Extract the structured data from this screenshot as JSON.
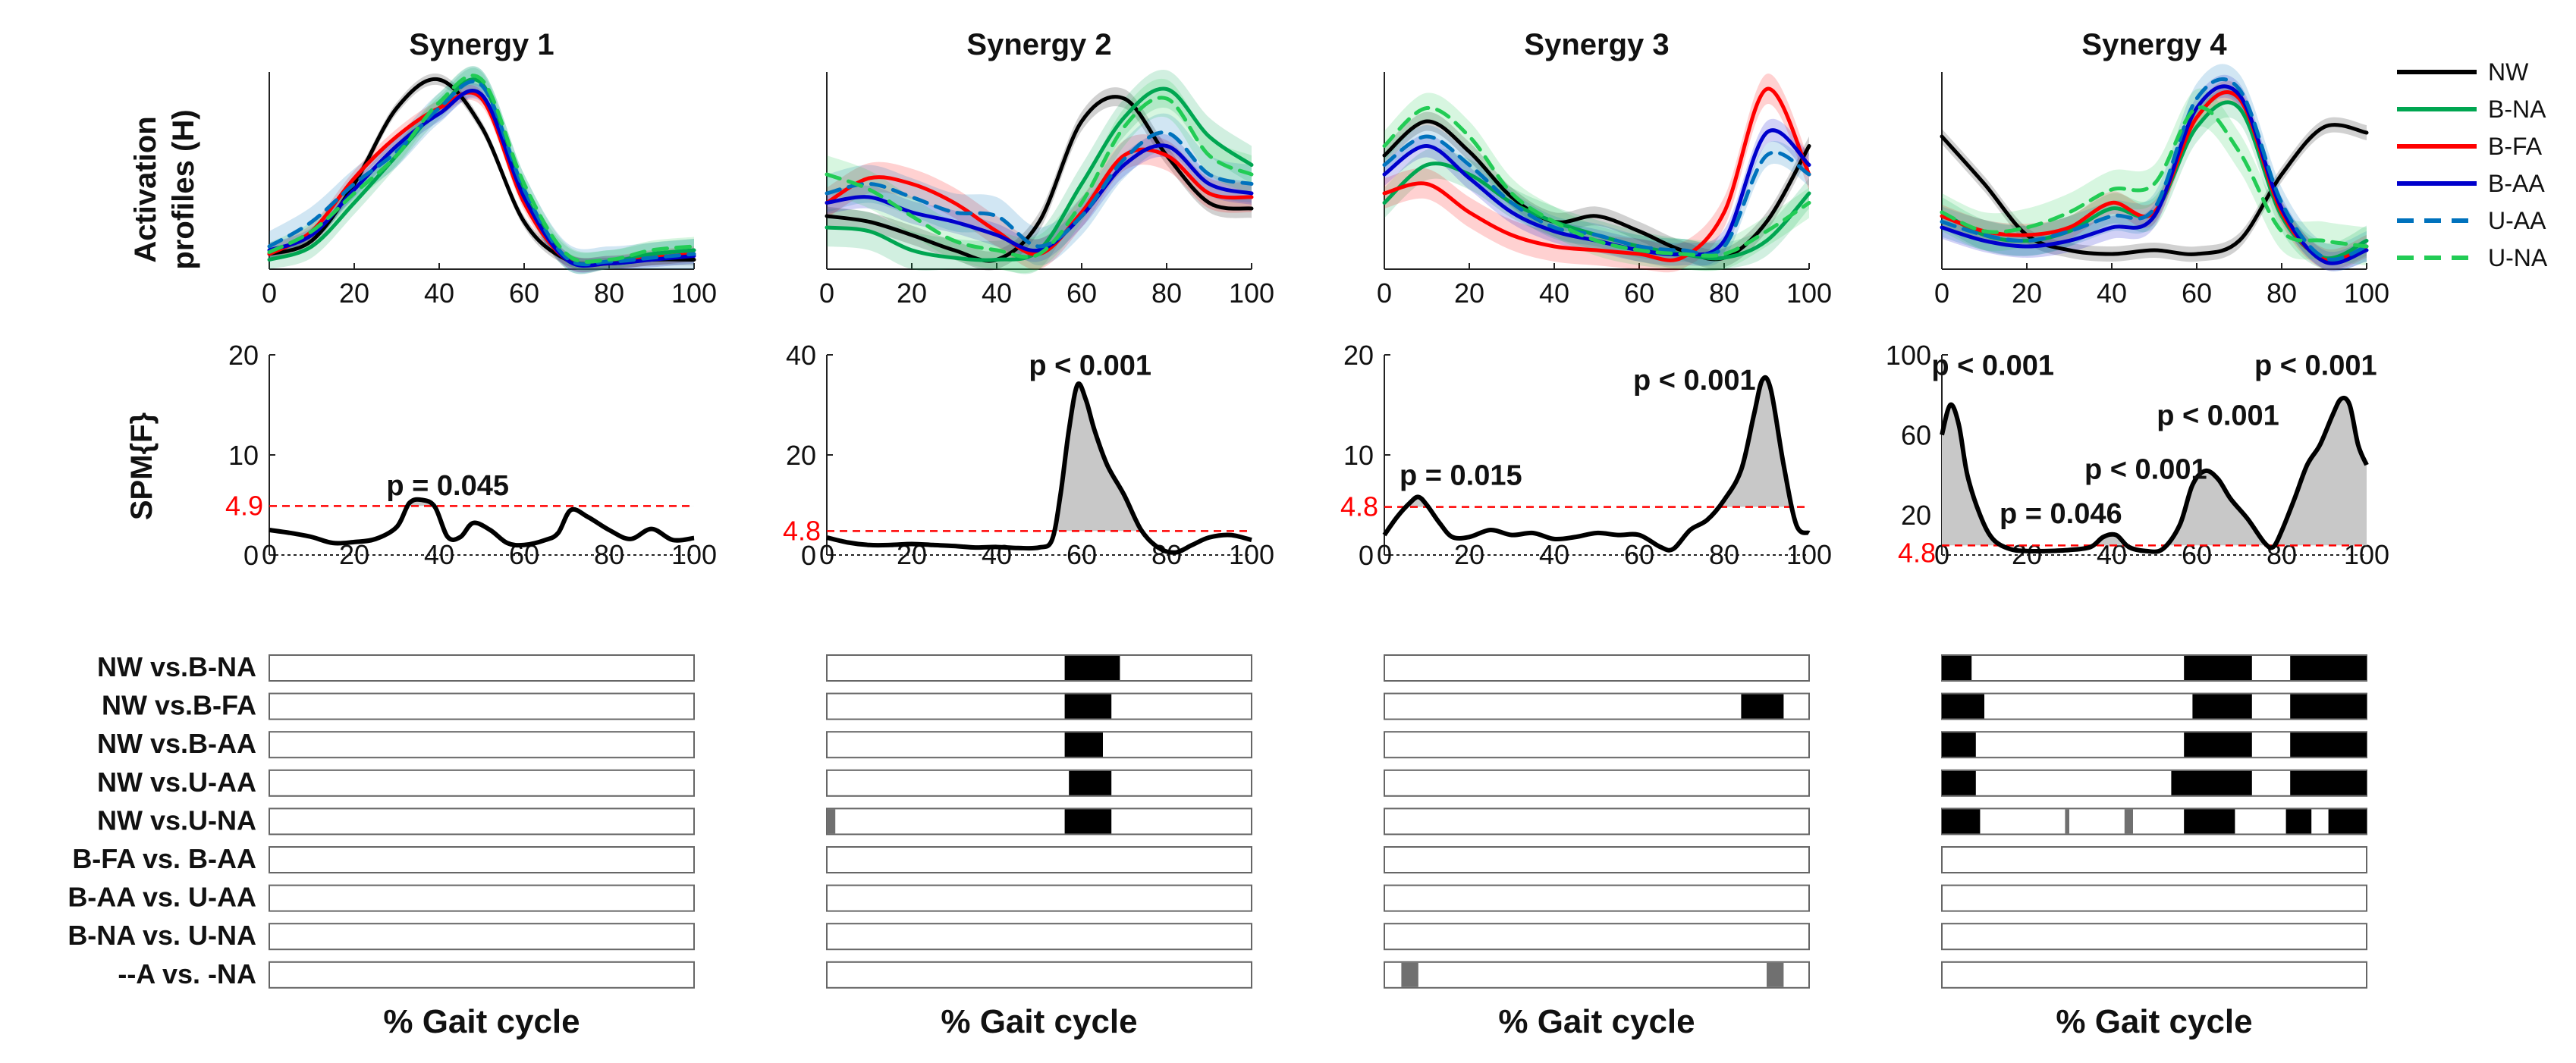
{
  "figure": {
    "x_axis_label": "% Gait cycle"
  },
  "legend": [
    {
      "label": "NW",
      "color": "#000000",
      "dash": false
    },
    {
      "label": "B-NA",
      "color": "#00a651",
      "dash": false
    },
    {
      "label": "B-FA",
      "color": "#ff0000",
      "dash": false
    },
    {
      "label": "B-AA",
      "color": "#0000cc",
      "dash": false
    },
    {
      "label": "U-AA",
      "color": "#0072bd",
      "dash": true
    },
    {
      "label": "U-NA",
      "color": "#22cc55",
      "dash": true
    }
  ],
  "row_labels": {
    "activation": [
      "Activation",
      "profiles (H)"
    ],
    "spm": "SPM{F}"
  },
  "comparisons": [
    "NW vs.B-NA",
    "NW vs.B-FA",
    "NW vs.B-AA",
    "NW vs.U-AA",
    "NW vs.U-NA",
    "B-FA vs. B-AA",
    "B-AA vs. U-AA",
    "B-NA vs. U-NA",
    "--A  vs.  -NA"
  ],
  "chart_data": [
    {
      "type": "line",
      "title": "Synergy 1",
      "xlabel": "% Gait cycle",
      "xlim": [
        0,
        100
      ],
      "xticks": [
        0,
        20,
        40,
        60,
        80,
        100
      ],
      "activation": {
        "x": [
          0,
          10,
          20,
          30,
          40,
          50,
          60,
          70,
          80,
          90,
          100
        ],
        "series": [
          {
            "name": "NW",
            "values": [
              0.08,
              0.15,
              0.45,
              0.85,
              1.0,
              0.75,
              0.25,
              0.05,
              0.03,
              0.05,
              0.05
            ],
            "band": 0.03
          },
          {
            "name": "B-NA",
            "values": [
              0.05,
              0.12,
              0.35,
              0.6,
              0.85,
              0.98,
              0.4,
              0.06,
              0.04,
              0.08,
              0.1
            ],
            "band": 0.06
          },
          {
            "name": "B-FA",
            "values": [
              0.08,
              0.2,
              0.48,
              0.7,
              0.85,
              0.9,
              0.35,
              0.05,
              0.03,
              0.06,
              0.08
            ],
            "band": 0.04
          },
          {
            "name": "B-AA",
            "values": [
              0.1,
              0.18,
              0.42,
              0.65,
              0.82,
              0.92,
              0.38,
              0.05,
              0.03,
              0.05,
              0.07
            ],
            "band": 0.04
          },
          {
            "name": "U-AA",
            "values": [
              0.12,
              0.25,
              0.45,
              0.62,
              0.85,
              0.97,
              0.42,
              0.06,
              0.04,
              0.06,
              0.08
            ],
            "band": 0.08
          },
          {
            "name": "U-NA",
            "values": [
              0.09,
              0.2,
              0.4,
              0.6,
              0.88,
              1.0,
              0.45,
              0.08,
              0.05,
              0.1,
              0.12
            ],
            "band": 0.05
          }
        ]
      },
      "spm": {
        "ylim": [
          0,
          20
        ],
        "yticks": [
          0,
          10,
          20
        ],
        "threshold": 4.9,
        "threshold_label": "4.9",
        "x": [
          0,
          5,
          10,
          15,
          20,
          25,
          30,
          33,
          36,
          39,
          42,
          45,
          48,
          52,
          56,
          60,
          65,
          68,
          71,
          75,
          80,
          85,
          90,
          95,
          100
        ],
        "values": [
          2.5,
          2.2,
          1.8,
          1.2,
          1.3,
          1.6,
          2.8,
          5.2,
          5.5,
          4.8,
          1.8,
          1.8,
          3.2,
          2.5,
          1.2,
          1.0,
          1.5,
          2.2,
          4.5,
          3.8,
          2.5,
          1.6,
          2.6,
          1.5,
          1.7
        ],
        "annotations": [
          {
            "text": "p = 0.045",
            "x": 42,
            "y": 6.0
          }
        ]
      },
      "sig_bars": [
        [],
        [],
        [],
        [],
        [],
        [],
        [],
        [],
        []
      ]
    },
    {
      "type": "line",
      "title": "Synergy 2",
      "xlabel": "% Gait cycle",
      "xlim": [
        0,
        100
      ],
      "xticks": [
        0,
        20,
        40,
        60,
        80,
        100
      ],
      "activation": {
        "x": [
          0,
          10,
          20,
          30,
          40,
          50,
          60,
          70,
          80,
          90,
          100
        ],
        "series": [
          {
            "name": "NW",
            "values": [
              0.28,
              0.25,
              0.18,
              0.1,
              0.05,
              0.25,
              0.78,
              0.9,
              0.6,
              0.35,
              0.32
            ],
            "band": 0.05
          },
          {
            "name": "B-NA",
            "values": [
              0.22,
              0.2,
              0.1,
              0.06,
              0.05,
              0.1,
              0.45,
              0.8,
              0.95,
              0.7,
              0.55
            ],
            "band": 0.1
          },
          {
            "name": "B-FA",
            "values": [
              0.35,
              0.48,
              0.45,
              0.35,
              0.2,
              0.08,
              0.3,
              0.6,
              0.6,
              0.4,
              0.38
            ],
            "band": 0.08
          },
          {
            "name": "B-AA",
            "values": [
              0.35,
              0.38,
              0.3,
              0.25,
              0.18,
              0.1,
              0.28,
              0.55,
              0.65,
              0.45,
              0.4
            ],
            "band": 0.06
          },
          {
            "name": "U-AA",
            "values": [
              0.4,
              0.45,
              0.38,
              0.3,
              0.28,
              0.12,
              0.28,
              0.58,
              0.72,
              0.5,
              0.45
            ],
            "band": 0.1
          },
          {
            "name": "U-NA",
            "values": [
              0.5,
              0.42,
              0.28,
              0.15,
              0.1,
              0.08,
              0.35,
              0.75,
              0.9,
              0.6,
              0.5
            ],
            "band": 0.1
          }
        ]
      },
      "spm": {
        "ylim": [
          0,
          40
        ],
        "yticks": [
          0,
          20,
          40
        ],
        "threshold": 4.8,
        "threshold_label": "4.8",
        "x": [
          0,
          5,
          10,
          15,
          20,
          25,
          30,
          35,
          40,
          45,
          50,
          53,
          55,
          57,
          59,
          61,
          63,
          66,
          70,
          74,
          78,
          82,
          86,
          90,
          95,
          100
        ],
        "values": [
          3.5,
          2.5,
          2.0,
          2.0,
          2.2,
          2.0,
          1.8,
          1.5,
          1.6,
          1.4,
          1.5,
          3.0,
          12.0,
          25.0,
          34.0,
          31.0,
          25.0,
          18.0,
          12.0,
          5.0,
          1.5,
          0.5,
          2.0,
          3.5,
          4.0,
          3.0
        ],
        "annotations": [
          {
            "text": "p < 0.001",
            "x": 62,
            "y": 36.0
          }
        ]
      },
      "sig_bars": [
        [
          {
            "start": 56,
            "end": 69,
            "sig": true
          }
        ],
        [
          {
            "start": 56,
            "end": 67,
            "sig": true
          }
        ],
        [
          {
            "start": 56,
            "end": 65,
            "sig": true
          }
        ],
        [
          {
            "start": 57,
            "end": 67,
            "sig": true
          }
        ],
        [
          {
            "start": 0,
            "end": 2,
            "sig": false
          },
          {
            "start": 56,
            "end": 67,
            "sig": true
          }
        ],
        [],
        [],
        [],
        []
      ]
    },
    {
      "type": "line",
      "title": "Synergy 3",
      "xlabel": "% Gait cycle",
      "xlim": [
        0,
        100
      ],
      "xticks": [
        0,
        20,
        40,
        60,
        80,
        100
      ],
      "activation": {
        "x": [
          0,
          10,
          20,
          30,
          40,
          50,
          60,
          70,
          80,
          90,
          100
        ],
        "series": [
          {
            "name": "NW",
            "values": [
              0.6,
              0.78,
              0.62,
              0.38,
              0.25,
              0.28,
              0.2,
              0.1,
              0.06,
              0.25,
              0.65
            ],
            "band": 0.05
          },
          {
            "name": "B-NA",
            "values": [
              0.35,
              0.55,
              0.5,
              0.35,
              0.25,
              0.18,
              0.12,
              0.08,
              0.06,
              0.15,
              0.4
            ],
            "band": 0.08
          },
          {
            "name": "B-FA",
            "values": [
              0.4,
              0.45,
              0.3,
              0.18,
              0.12,
              0.1,
              0.08,
              0.06,
              0.3,
              0.95,
              0.5
            ],
            "band": 0.08
          },
          {
            "name": "B-AA",
            "values": [
              0.5,
              0.65,
              0.48,
              0.3,
              0.2,
              0.15,
              0.1,
              0.08,
              0.15,
              0.72,
              0.55
            ],
            "band": 0.06
          },
          {
            "name": "U-AA",
            "values": [
              0.55,
              0.7,
              0.55,
              0.35,
              0.22,
              0.18,
              0.12,
              0.1,
              0.12,
              0.6,
              0.5
            ],
            "band": 0.06
          },
          {
            "name": "U-NA",
            "values": [
              0.65,
              0.85,
              0.7,
              0.4,
              0.25,
              0.15,
              0.1,
              0.08,
              0.08,
              0.2,
              0.35
            ],
            "band": 0.08
          }
        ]
      },
      "spm": {
        "ylim": [
          0,
          20
        ],
        "yticks": [
          0,
          10,
          20
        ],
        "threshold": 4.8,
        "threshold_label": "4.8",
        "x": [
          0,
          3,
          6,
          8,
          10,
          13,
          16,
          20,
          25,
          30,
          35,
          40,
          45,
          50,
          55,
          60,
          65,
          68,
          72,
          76,
          80,
          84,
          87,
          89,
          91,
          94,
          97,
          100
        ],
        "values": [
          2.0,
          3.8,
          5.2,
          5.8,
          5.0,
          3.2,
          1.8,
          1.8,
          2.5,
          2.0,
          2.2,
          1.6,
          1.8,
          2.2,
          2.0,
          2.0,
          0.8,
          0.6,
          2.5,
          3.5,
          5.5,
          8.5,
          14.0,
          17.5,
          16.5,
          9.0,
          3.0,
          2.2
        ],
        "annotations": [
          {
            "text": "p = 0.015",
            "x": 18,
            "y": 7.0
          },
          {
            "text": "p < 0.001",
            "x": 73,
            "y": 16.5
          }
        ]
      },
      "sig_bars": [
        [],
        [
          {
            "start": 84,
            "end": 94,
            "sig": true
          }
        ],
        [],
        [],
        [],
        [],
        [],
        [],
        [
          {
            "start": 4,
            "end": 8,
            "sig": false
          },
          {
            "start": 90,
            "end": 94,
            "sig": false
          }
        ]
      ]
    },
    {
      "type": "line",
      "title": "Synergy 4",
      "xlabel": "% Gait cycle",
      "xlim": [
        0,
        100
      ],
      "xticks": [
        0,
        20,
        40,
        60,
        80,
        100
      ],
      "activation": {
        "x": [
          0,
          10,
          20,
          30,
          40,
          50,
          60,
          70,
          80,
          90,
          100
        ],
        "series": [
          {
            "name": "NW",
            "values": [
              0.7,
              0.45,
              0.18,
              0.1,
              0.08,
              0.1,
              0.08,
              0.15,
              0.5,
              0.75,
              0.72
            ],
            "band": 0.04
          },
          {
            "name": "B-NA",
            "values": [
              0.3,
              0.18,
              0.15,
              0.2,
              0.32,
              0.3,
              0.75,
              0.85,
              0.28,
              0.06,
              0.15
            ],
            "band": 0.08
          },
          {
            "name": "B-FA",
            "values": [
              0.28,
              0.2,
              0.18,
              0.22,
              0.35,
              0.3,
              0.8,
              0.9,
              0.3,
              0.05,
              0.12
            ],
            "band": 0.06
          },
          {
            "name": "B-AA",
            "values": [
              0.22,
              0.15,
              0.12,
              0.15,
              0.22,
              0.28,
              0.85,
              0.92,
              0.32,
              0.04,
              0.1
            ],
            "band": 0.06
          },
          {
            "name": "U-AA",
            "values": [
              0.25,
              0.18,
              0.15,
              0.2,
              0.28,
              0.32,
              0.9,
              0.95,
              0.35,
              0.06,
              0.12
            ],
            "band": 0.08
          },
          {
            "name": "U-NA",
            "values": [
              0.3,
              0.2,
              0.22,
              0.3,
              0.42,
              0.45,
              0.85,
              0.62,
              0.2,
              0.15,
              0.12
            ],
            "band": 0.1
          }
        ]
      },
      "spm": {
        "ylim": [
          0,
          100
        ],
        "yticks": [
          20,
          60,
          100
        ],
        "threshold": 4.8,
        "threshold_label": "4.8",
        "x": [
          0,
          2,
          4,
          6,
          9,
          12,
          16,
          20,
          25,
          30,
          35,
          38,
          41,
          44,
          48,
          52,
          56,
          59,
          62,
          65,
          68,
          72,
          76,
          78,
          80,
          83,
          86,
          89,
          92,
          94,
          96,
          98,
          100
        ],
        "values": [
          60,
          75,
          65,
          40,
          20,
          8,
          3,
          2,
          2,
          2.5,
          4,
          9,
          10,
          4,
          2,
          3,
          15,
          35,
          42,
          38,
          28,
          18,
          6,
          4,
          12,
          28,
          45,
          55,
          70,
          78,
          75,
          55,
          45
        ],
        "annotations": [
          {
            "text": "p < 0.001",
            "x": 12,
            "y": 90
          },
          {
            "text": "p = 0.046",
            "x": 28,
            "y": 16
          },
          {
            "text": "p < 0.001",
            "x": 48,
            "y": 38
          },
          {
            "text": "p < 0.001",
            "x": 65,
            "y": 65
          },
          {
            "text": "p < 0.001",
            "x": 88,
            "y": 90
          }
        ]
      },
      "sig_bars": [
        [
          {
            "start": 0,
            "end": 7,
            "sig": true
          },
          {
            "start": 57,
            "end": 73,
            "sig": true
          },
          {
            "start": 82,
            "end": 100,
            "sig": true
          }
        ],
        [
          {
            "start": 0,
            "end": 10,
            "sig": true
          },
          {
            "start": 59,
            "end": 73,
            "sig": true
          },
          {
            "start": 82,
            "end": 100,
            "sig": true
          }
        ],
        [
          {
            "start": 0,
            "end": 8,
            "sig": true
          },
          {
            "start": 57,
            "end": 73,
            "sig": true
          },
          {
            "start": 82,
            "end": 100,
            "sig": true
          }
        ],
        [
          {
            "start": 0,
            "end": 8,
            "sig": true
          },
          {
            "start": 54,
            "end": 73,
            "sig": true
          },
          {
            "start": 82,
            "end": 100,
            "sig": true
          }
        ],
        [
          {
            "start": 0,
            "end": 9,
            "sig": true
          },
          {
            "start": 29,
            "end": 30,
            "sig": false
          },
          {
            "start": 43,
            "end": 45,
            "sig": false
          },
          {
            "start": 57,
            "end": 69,
            "sig": true
          },
          {
            "start": 81,
            "end": 87,
            "sig": true
          },
          {
            "start": 91,
            "end": 100,
            "sig": true
          }
        ],
        [],
        [],
        [],
        []
      ]
    }
  ]
}
